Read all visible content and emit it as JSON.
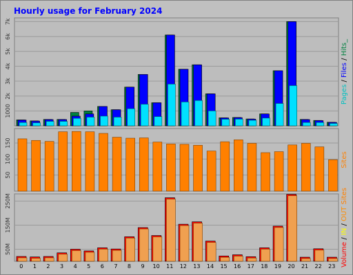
{
  "chart_data": {
    "type": "bar",
    "title": "Hourly usage for February 2024",
    "colors": {
      "frame_bg": "#c0c0c0",
      "panel_bg": "#bdbdbd",
      "border": "#808080",
      "title": "#0000ff",
      "pages": "#00c0c0",
      "pages_top": "#00e0ff",
      "files": "#0000ff",
      "hits": "#008040",
      "sites": "#ff8000",
      "volume": "#ff0000",
      "in": "#ffff00",
      "out": "#ff8c00",
      "gridline": "#9a9a9a",
      "volume_fill": "#f0a050"
    },
    "categories": [
      "0",
      "1",
      "2",
      "3",
      "4",
      "5",
      "6",
      "7",
      "8",
      "9",
      "10",
      "11",
      "12",
      "13",
      "14",
      "15",
      "16",
      "17",
      "18",
      "19",
      "20",
      "21",
      "22",
      "23"
    ],
    "panels": [
      {
        "label_parts": [
          {
            "text": "Pages",
            "color": "#00c0c0"
          },
          {
            "text": " / ",
            "color": "#000000"
          },
          {
            "text": "Files",
            "color": "#0000ff"
          },
          {
            "text": " / ",
            "color": "#000000"
          },
          {
            "text": "Hits",
            "color": "#008040"
          },
          {
            "text": "_",
            "color": "#008040"
          }
        ],
        "ticks": [
          "1000",
          "2k",
          "3k",
          "4k",
          "5k",
          "6k",
          "7k"
        ],
        "tick_values": [
          1000,
          2000,
          3000,
          4000,
          5000,
          6000,
          7000
        ],
        "ylim": [
          0,
          7250
        ],
        "series": [
          {
            "name": "Hits",
            "values": [
              400,
              330,
              430,
              430,
              900,
              1000,
              1300,
              1080,
              2600,
              3450,
              1550,
              6100,
              3800,
              4100,
              2150,
              540,
              560,
              460,
              800,
              3700,
              7000,
              430,
              360,
              240
            ]
          },
          {
            "name": "Files",
            "values": [
              390,
              320,
              420,
              420,
              650,
              800,
              1300,
              1080,
              2600,
              3450,
              1550,
              6100,
              3800,
              4100,
              2150,
              530,
              550,
              450,
              800,
              3700,
              7000,
              420,
              350,
              230
            ]
          },
          {
            "name": "Pages",
            "values": [
              220,
              200,
              300,
              300,
              500,
              580,
              650,
              580,
              1150,
              1450,
              620,
              2800,
              1600,
              1700,
              1000,
              440,
              450,
              370,
              520,
              1500,
              2700,
              220,
              220,
              160
            ]
          }
        ]
      },
      {
        "label_parts": [
          {
            "text": "Sites",
            "color": "#ff8000"
          }
        ],
        "ticks": [
          "50",
          "100",
          "150"
        ],
        "tick_values": [
          50,
          100,
          150
        ],
        "ylim": [
          0,
          195
        ],
        "series": [
          {
            "name": "Sites",
            "values": [
              163,
              158,
              155,
              185,
              186,
              185,
              180,
              168,
              165,
              166,
              153,
              147,
              146,
              143,
              125,
              154,
              160,
              149,
              120,
              123,
              144,
              149,
              138,
              98
            ]
          }
        ]
      },
      {
        "label_parts": [
          {
            "text": "Volume",
            "color": "#ff0000"
          },
          {
            "text": " / ",
            "color": "#000000"
          },
          {
            "text": "IN",
            "color": "#ffff00"
          },
          {
            "text": " / ",
            "color": "#000000"
          },
          {
            "text": "OUT",
            "color": "#ff8c00"
          },
          {
            "text": " ",
            "color": "#000000"
          },
          {
            "text": "Sites",
            "color": "#ff8000"
          }
        ],
        "ticks": [
          "50M",
          "150M",
          "250M"
        ],
        "tick_values": [
          50,
          150,
          250
        ],
        "ylim": [
          0,
          280
        ],
        "series": [
          {
            "name": "Volume",
            "values": [
              20,
              18,
              20,
              35,
              50,
              43,
              56,
              51,
              102,
              140,
              107,
              264,
              154,
              164,
              84,
              22,
              27,
              19,
              56,
              146,
              278,
              17,
              52,
              17
            ]
          }
        ]
      }
    ]
  }
}
